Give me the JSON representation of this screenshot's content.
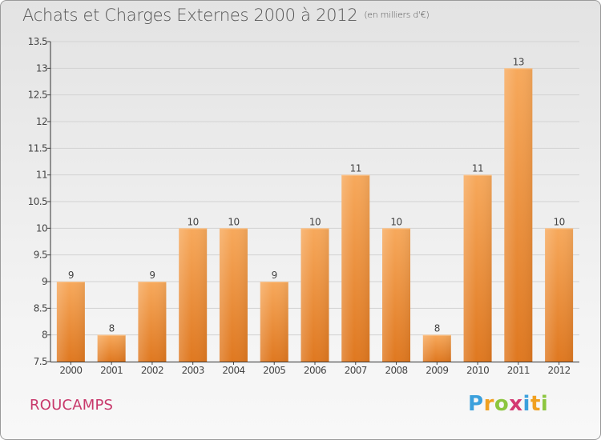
{
  "header": {
    "title": "Achats et Charges Externes 2000 à 2012",
    "unit": "(en milliers d'€)"
  },
  "footer": {
    "commune": "ROUCAMPS",
    "logo": {
      "p": "P",
      "r": "r",
      "o": "o",
      "x": "x",
      "i1": "i",
      "t": "t",
      "i2": "i"
    }
  },
  "chart_data": {
    "type": "bar",
    "title": "Achats et Charges Externes 2000 à 2012",
    "subtitle": "(en milliers d'€)",
    "categories": [
      "2000",
      "2001",
      "2002",
      "2003",
      "2004",
      "2005",
      "2006",
      "2007",
      "2008",
      "2009",
      "2010",
      "2011",
      "2012"
    ],
    "values": [
      9,
      8,
      9,
      10,
      10,
      9,
      10,
      11,
      10,
      8,
      11,
      13,
      10
    ],
    "ylim": [
      7.5,
      13.5
    ],
    "yticks": [
      "7.5",
      "8",
      "8.5",
      "9",
      "9.5",
      "10",
      "10.5",
      "11",
      "11.5",
      "12",
      "12.5",
      "13",
      "13.5"
    ],
    "grid": true,
    "colors": {
      "bar_top": "#f6a65a",
      "bar_bottom": "#e07a22",
      "axis": "#333333"
    }
  }
}
